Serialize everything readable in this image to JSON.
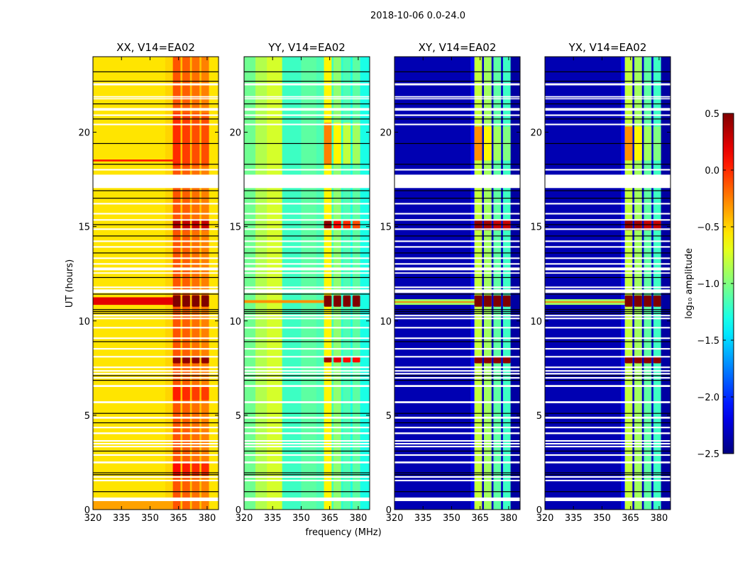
{
  "chart_data": {
    "type": "heatmap",
    "title": "2018-10-06 0.0-24.0",
    "xlabel": "frequency (MHz)",
    "ylabel": "UT (hours)",
    "xlim": [
      320,
      386
    ],
    "ylim": [
      0,
      24
    ],
    "xticks": [
      320,
      335,
      350,
      365,
      380
    ],
    "yticks": [
      0,
      5,
      10,
      15,
      20
    ],
    "colormap": "jet",
    "colorbar": {
      "label": "log₁₀ amplitude",
      "range": [
        -2.5,
        0.5
      ],
      "ticks": [
        0.5,
        0.0,
        -0.5,
        -1.0,
        -1.5,
        -2.0,
        -2.5
      ],
      "tick_labels": [
        "0.5",
        "0.0",
        "−0.5",
        "−1.0",
        "−1.5",
        "−2.0",
        "−2.5"
      ]
    },
    "rfi_columns_mhz": [
      [
        362,
        366
      ],
      [
        367,
        371
      ],
      [
        372,
        376
      ],
      [
        377,
        381
      ]
    ],
    "flagged_hours": [
      [
        22.48,
        22.59
      ],
      [
        21.84,
        21.91
      ],
      [
        21.74,
        21.8
      ],
      [
        21.14,
        21.28
      ],
      [
        20.86,
        20.94
      ],
      [
        20.37,
        20.45
      ],
      [
        17.97,
        18.05
      ],
      [
        17.04,
        17.75
      ],
      [
        16.17,
        16.25
      ],
      [
        15.64,
        15.72
      ],
      [
        15.31,
        15.39
      ],
      [
        14.82,
        14.9
      ],
      [
        14.18,
        14.26
      ],
      [
        13.88,
        13.96
      ],
      [
        13.28,
        13.36
      ],
      [
        12.98,
        13.06
      ],
      [
        12.68,
        12.83
      ],
      [
        12.5,
        12.57
      ],
      [
        11.74,
        11.82
      ],
      [
        11.48,
        11.67
      ],
      [
        10.24,
        10.32
      ],
      [
        10.09,
        10.17
      ],
      [
        9.6,
        9.68
      ],
      [
        9.04,
        9.12
      ],
      [
        8.48,
        8.56
      ],
      [
        8.06,
        8.14
      ],
      [
        7.5,
        7.58
      ],
      [
        7.31,
        7.39
      ],
      [
        7.16,
        7.24
      ],
      [
        6.94,
        7.02
      ],
      [
        6.5,
        6.6
      ],
      [
        5.64,
        5.74
      ],
      [
        4.82,
        4.92
      ],
      [
        4.31,
        4.39
      ],
      [
        4.0,
        4.09
      ],
      [
        3.6,
        3.68
      ],
      [
        3.45,
        3.53
      ],
      [
        3.3,
        3.38
      ],
      [
        2.85,
        2.93
      ],
      [
        2.45,
        2.55
      ],
      [
        1.69,
        1.77
      ],
      [
        1.5,
        1.58
      ],
      [
        0.45,
        0.64
      ]
    ],
    "black_lines_hours": [
      23.2,
      22.7,
      21.5,
      20.7,
      19.4,
      18.3,
      16.9,
      16.5,
      15.1,
      14.5,
      13.6,
      12.3,
      11.42,
      10.6,
      10.5,
      10.4,
      8.9,
      7.1,
      6.85,
      5.1,
      4.6,
      3.1,
      1.95,
      1.85,
      0.95
    ],
    "panels": [
      {
        "title": "XX, V14=EA02",
        "profile": [
          [
            320,
            358,
            -0.55
          ],
          [
            358,
            362,
            -0.5
          ],
          [
            362,
            366,
            -0.12
          ],
          [
            366,
            367,
            -0.45
          ],
          [
            367,
            371,
            -0.15
          ],
          [
            371,
            372,
            -0.45
          ],
          [
            372,
            376,
            -0.2
          ],
          [
            376,
            377,
            -0.45
          ],
          [
            377,
            381,
            -0.25
          ],
          [
            381,
            386,
            -0.55
          ]
        ],
        "bursts": [
          {
            "t": [
              10.75,
              11.35
            ],
            "v": [
              0.5,
              0.5,
              0.5,
              0.5
            ]
          },
          {
            "t": [
              7.75,
              8.1
            ],
            "v": [
              0.45,
              0.45,
              0.45,
              0.45
            ]
          },
          {
            "t": [
              14.8,
              15.4
            ],
            "v": [
              0.35,
              0.3,
              0.3,
              0.3
            ]
          },
          {
            "t": [
              5.8,
              6.5
            ],
            "v": [
              0.05,
              0.0,
              -0.05,
              -0.05
            ]
          },
          {
            "t": [
              1.8,
              2.45
            ],
            "v": [
              0.1,
              0.05,
              0.0,
              0.0
            ]
          },
          {
            "t": [
              18.2,
              21.0
            ],
            "v": [
              0.0,
              -0.05,
              -0.1,
              -0.1
            ]
          }
        ],
        "streaks": [
          {
            "t": [
              10.85,
              11.25
            ],
            "f": [
              320,
              362
            ],
            "v": 0.2
          },
          {
            "t": [
              18.45,
              18.55
            ],
            "f": [
              320,
              362
            ],
            "v": 0.05
          },
          {
            "t": [
              0.0,
              0.45
            ],
            "f": [
              320,
              362
            ],
            "v": -0.35
          }
        ]
      },
      {
        "title": "YY, V14=EA02",
        "profile": [
          [
            320,
            326,
            -1.05
          ],
          [
            326,
            332,
            -0.85
          ],
          [
            332,
            340,
            -0.75
          ],
          [
            340,
            350,
            -1.2
          ],
          [
            350,
            358,
            -1.1
          ],
          [
            358,
            362,
            -1.15
          ],
          [
            362,
            366,
            -0.6
          ],
          [
            366,
            367,
            -1.2
          ],
          [
            367,
            371,
            -0.95
          ],
          [
            371,
            372,
            -1.25
          ],
          [
            372,
            376,
            -1.15
          ],
          [
            376,
            377,
            -1.3
          ],
          [
            377,
            381,
            -1.1
          ],
          [
            381,
            386,
            -1.3
          ]
        ],
        "bursts": [
          {
            "t": [
              10.75,
              11.35
            ],
            "v": [
              0.5,
              0.5,
              0.5,
              0.5
            ]
          },
          {
            "t": [
              7.8,
              8.1
            ],
            "v": [
              0.4,
              0.2,
              0.1,
              0.1
            ]
          },
          {
            "t": [
              14.9,
              15.3
            ],
            "v": [
              0.45,
              0.1,
              0.0,
              -0.1
            ]
          },
          {
            "t": [
              18.3,
              20.5
            ],
            "v": [
              -0.25,
              -0.6,
              -0.8,
              -0.9
            ]
          }
        ],
        "streaks": [
          {
            "t": [
              10.95,
              11.1
            ],
            "f": [
              320,
              362
            ],
            "v": -0.3
          }
        ]
      },
      {
        "title": "XY, V14=EA02",
        "profile": [
          [
            320,
            360,
            -2.35
          ],
          [
            360,
            362,
            -2.1
          ],
          [
            362,
            366,
            -0.8
          ],
          [
            366,
            367,
            -2.3
          ],
          [
            367,
            371,
            -0.9
          ],
          [
            371,
            372,
            -2.3
          ],
          [
            372,
            376,
            -1.1
          ],
          [
            376,
            377,
            -2.3
          ],
          [
            377,
            381,
            -1.2
          ],
          [
            381,
            386,
            -2.4
          ]
        ],
        "bursts": [
          {
            "t": [
              10.75,
              11.35
            ],
            "v": [
              0.5,
              0.5,
              0.5,
              0.5
            ]
          },
          {
            "t": [
              7.75,
              8.1
            ],
            "v": [
              0.45,
              0.45,
              0.45,
              0.45
            ]
          },
          {
            "t": [
              14.8,
              15.35
            ],
            "v": [
              0.45,
              0.4,
              0.3,
              0.3
            ]
          },
          {
            "t": [
              18.5,
              20.3
            ],
            "v": [
              -0.3,
              -0.6,
              -0.9,
              -1.0
            ]
          }
        ],
        "streaks": [
          {
            "t": [
              10.85,
              11.15
            ],
            "f": [
              320,
              362
            ],
            "v": -0.9
          },
          {
            "t": [
              10.97,
              11.03
            ],
            "f": [
              320,
              362
            ],
            "v": -0.2
          }
        ]
      },
      {
        "title": "YX, V14=EA02",
        "profile": [
          [
            320,
            360,
            -2.35
          ],
          [
            360,
            362,
            -2.1
          ],
          [
            362,
            366,
            -0.8
          ],
          [
            366,
            367,
            -2.3
          ],
          [
            367,
            371,
            -0.9
          ],
          [
            371,
            372,
            -2.3
          ],
          [
            372,
            376,
            -1.1
          ],
          [
            376,
            377,
            -2.3
          ],
          [
            377,
            381,
            -1.2
          ],
          [
            381,
            386,
            -2.4
          ]
        ],
        "bursts": [
          {
            "t": [
              10.75,
              11.35
            ],
            "v": [
              0.5,
              0.5,
              0.5,
              0.5
            ]
          },
          {
            "t": [
              7.75,
              8.1
            ],
            "v": [
              0.45,
              0.45,
              0.45,
              0.45
            ]
          },
          {
            "t": [
              14.8,
              15.35
            ],
            "v": [
              0.45,
              0.4,
              0.3,
              0.3
            ]
          },
          {
            "t": [
              18.5,
              20.3
            ],
            "v": [
              -0.3,
              -0.6,
              -0.9,
              -1.0
            ]
          }
        ],
        "streaks": [
          {
            "t": [
              10.85,
              11.15
            ],
            "f": [
              320,
              362
            ],
            "v": -0.9
          },
          {
            "t": [
              10.97,
              11.03
            ],
            "f": [
              320,
              362
            ],
            "v": -0.2
          }
        ]
      }
    ]
  }
}
